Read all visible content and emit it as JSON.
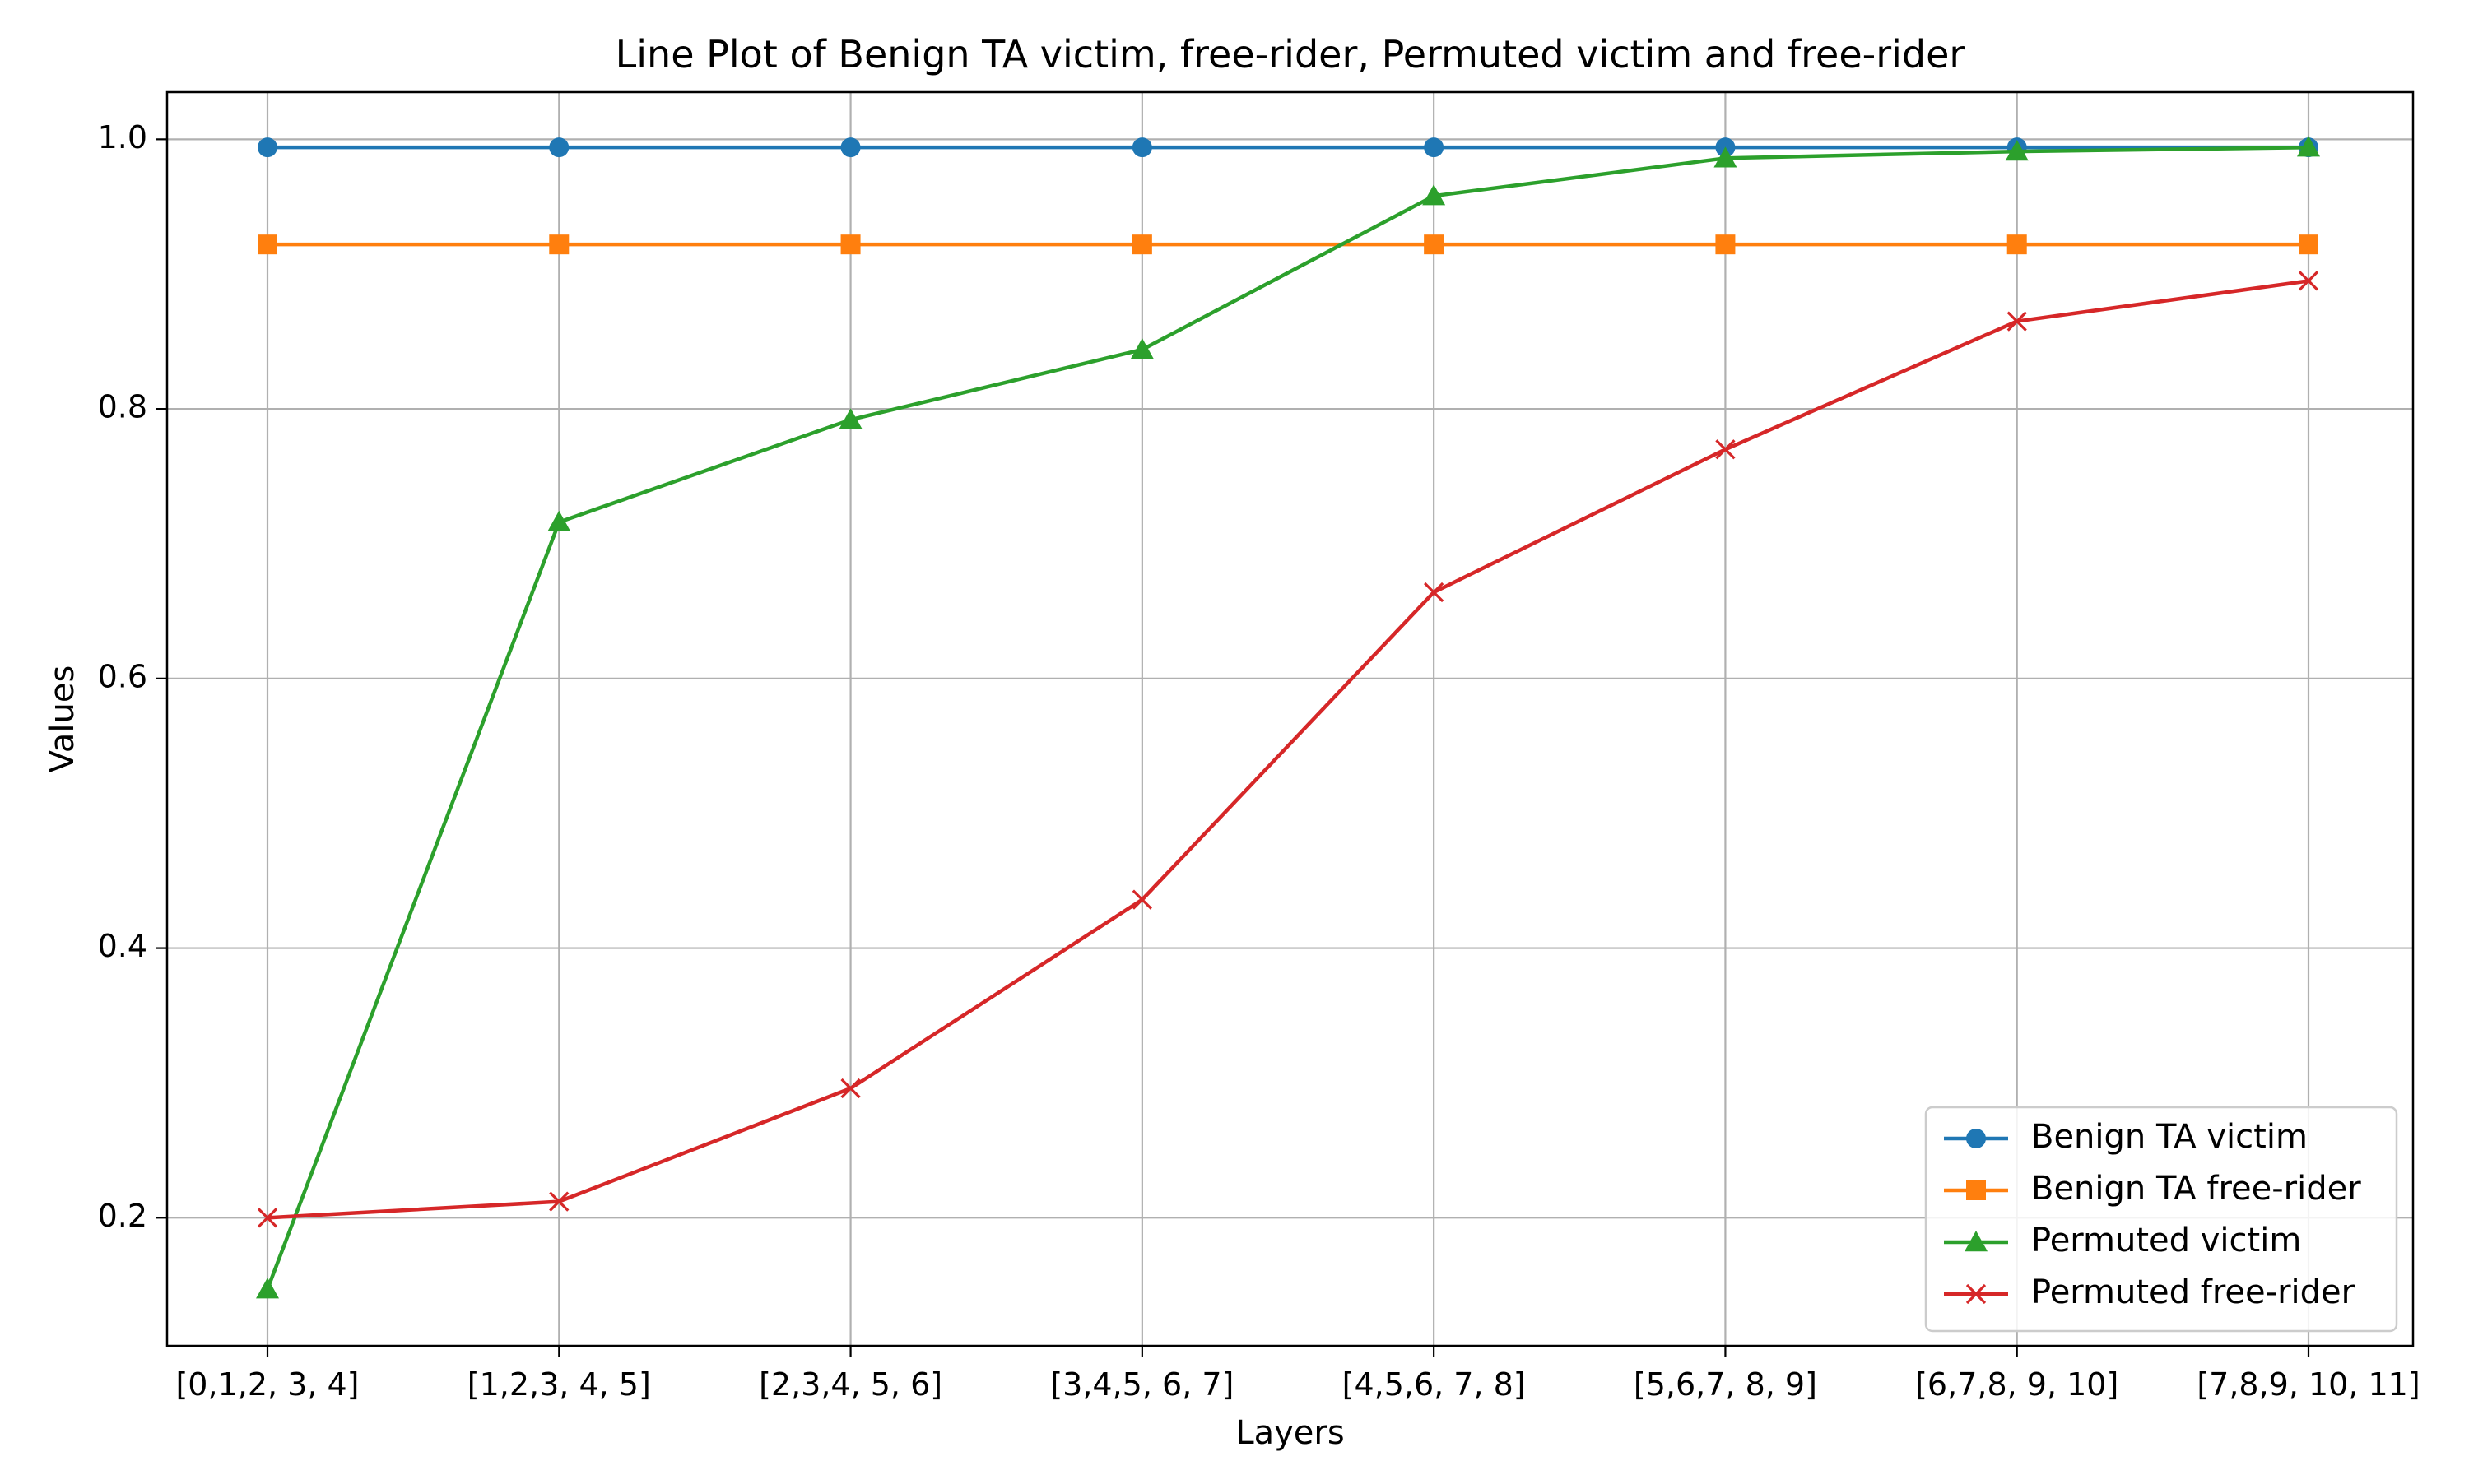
{
  "chart_data": {
    "type": "line",
    "title": "Line Plot of Benign TA victim, free-rider, Permuted victim and free-rider",
    "xlabel": "Layers",
    "ylabel": "Values",
    "categories": [
      "[0,1,2, 3, 4]",
      "[1,2,3, 4, 5]",
      "[2,3,4, 5, 6]",
      "[3,4,5, 6, 7]",
      "[4,5,6, 7, 8]",
      "[5,6,7, 8, 9]",
      "[6,7,8, 9, 10]",
      "[7,8,9, 10, 11]"
    ],
    "ylim": [
      0.105,
      1.035
    ],
    "yticks": [
      {
        "value": 0.2,
        "label": "0.2"
      },
      {
        "value": 0.4,
        "label": "0.4"
      },
      {
        "value": 0.6,
        "label": "0.6"
      },
      {
        "value": 0.8,
        "label": "0.8"
      },
      {
        "value": 1.0,
        "label": "1.0"
      }
    ],
    "grid": true,
    "legend_position": "lower-right",
    "series": [
      {
        "name": "Benign TA victim",
        "color": "#1f77b4",
        "marker": "circle",
        "values": [
          0.994,
          0.994,
          0.994,
          0.994,
          0.994,
          0.994,
          0.994,
          0.994
        ]
      },
      {
        "name": "Benign TA free-rider",
        "color": "#ff7f0e",
        "marker": "square",
        "values": [
          0.922,
          0.922,
          0.922,
          0.922,
          0.922,
          0.922,
          0.922,
          0.922
        ]
      },
      {
        "name": "Permuted victim",
        "color": "#2ca02c",
        "marker": "triangle",
        "values": [
          0.147,
          0.716,
          0.792,
          0.844,
          0.958,
          0.986,
          0.991,
          0.994
        ]
      },
      {
        "name": "Permuted free-rider",
        "color": "#d62728",
        "marker": "x",
        "values": [
          0.2,
          0.212,
          0.296,
          0.436,
          0.664,
          0.77,
          0.865,
          0.895
        ]
      }
    ]
  }
}
